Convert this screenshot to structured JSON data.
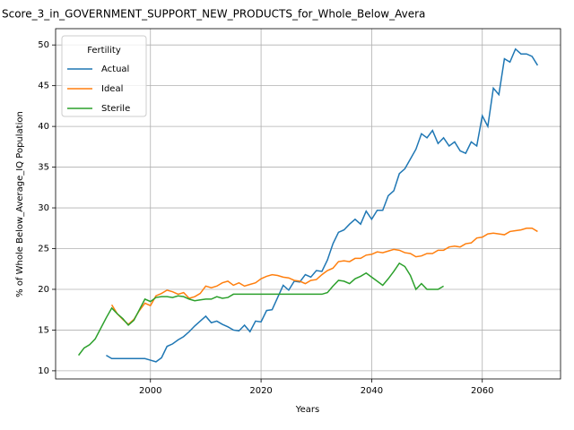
{
  "chart_data": {
    "type": "line",
    "title": "Score_3_in_GOVERNMENT_SUPPORT_NEW_PRODUCTS_for_Whole_Below_Avera",
    "xlabel": "Years",
    "ylabel": "% of Whole Below_Average_IQ Population",
    "legend_title": "Fertility",
    "legend": "upper left",
    "grid": true,
    "x": [
      1987,
      1988,
      1989,
      1990,
      1991,
      1992,
      1993,
      1994,
      1995,
      1996,
      1997,
      1998,
      1999,
      2000,
      2001,
      2002,
      2003,
      2004,
      2005,
      2006,
      2007,
      2008,
      2009,
      2010,
      2011,
      2012,
      2013,
      2014,
      2015,
      2016,
      2017,
      2018,
      2019,
      2020,
      2021,
      2022,
      2023,
      2024,
      2025,
      2026,
      2027,
      2028,
      2029,
      2030,
      2031,
      2032,
      2033,
      2034,
      2035,
      2036,
      2037,
      2038,
      2039,
      2040,
      2041,
      2042,
      2043,
      2044,
      2045,
      2046,
      2047,
      2048,
      2049,
      2050,
      2051,
      2052,
      2053,
      2054,
      2055,
      2056,
      2057,
      2058,
      2059,
      2060,
      2061,
      2062,
      2063,
      2064,
      2065,
      2066,
      2067,
      2068,
      2069,
      2070
    ],
    "series": [
      {
        "name": "Actual",
        "color": "#1f77b4",
        "values": [
          null,
          null,
          null,
          null,
          null,
          11.9,
          11.5,
          11.5,
          11.5,
          11.5,
          11.5,
          11.5,
          11.5,
          11.3,
          11.1,
          11.6,
          13.0,
          13.3,
          13.8,
          14.2,
          14.8,
          15.5,
          16.1,
          16.7,
          15.9,
          16.1,
          15.7,
          15.4,
          15.0,
          14.9,
          15.6,
          14.8,
          16.1,
          16.0,
          17.4,
          17.5,
          19.0,
          20.5,
          19.9,
          21.0,
          20.9,
          21.8,
          21.5,
          22.3,
          22.2,
          23.6,
          25.6,
          27.0,
          27.3,
          28.0,
          28.6,
          28.0,
          29.6,
          28.6,
          29.7,
          29.7,
          31.5,
          32.1,
          34.2,
          34.8,
          36.0,
          37.2,
          39.1,
          38.6,
          39.5,
          37.9,
          38.6,
          37.6,
          38.1,
          37.0,
          36.7,
          38.1,
          37.6,
          41.3,
          40.0,
          44.7,
          43.9,
          48.3,
          47.9,
          49.5,
          48.9,
          48.9,
          48.6,
          47.5
        ]
      },
      {
        "name": "Ideal",
        "color": "#ff7f0e",
        "values": [
          null,
          null,
          null,
          null,
          null,
          null,
          18.1,
          17.0,
          16.3,
          15.7,
          16.3,
          17.4,
          18.3,
          18.0,
          19.2,
          19.5,
          19.9,
          19.7,
          19.4,
          19.6,
          18.9,
          19.1,
          19.5,
          20.4,
          20.2,
          20.4,
          20.8,
          21.0,
          20.5,
          20.8,
          20.4,
          20.6,
          20.8,
          21.3,
          21.6,
          21.8,
          21.7,
          21.5,
          21.4,
          21.1,
          21.0,
          20.7,
          21.1,
          21.2,
          21.8,
          22.3,
          22.6,
          23.4,
          23.5,
          23.4,
          23.8,
          23.8,
          24.2,
          24.3,
          24.6,
          24.5,
          24.7,
          24.9,
          24.8,
          24.5,
          24.4,
          24.0,
          24.1,
          24.4,
          24.4,
          24.8,
          24.8,
          25.2,
          25.3,
          25.2,
          25.6,
          25.7,
          26.3,
          26.4,
          26.8,
          26.9,
          26.8,
          26.7,
          27.1,
          27.2,
          27.3,
          27.5,
          27.5,
          27.1
        ]
      },
      {
        "name": "Sterile",
        "color": "#2ca02c",
        "values": [
          11.9,
          12.8,
          13.2,
          13.9,
          15.2,
          16.5,
          17.7,
          17.0,
          16.4,
          15.6,
          16.2,
          17.5,
          18.8,
          18.5,
          19.0,
          19.1,
          19.1,
          19.0,
          19.2,
          19.1,
          18.8,
          18.6,
          18.7,
          18.8,
          18.8,
          19.1,
          18.9,
          19.0,
          19.4,
          19.4,
          19.4,
          19.4,
          19.4,
          19.4,
          19.4,
          19.4,
          19.4,
          19.4,
          19.4,
          19.4,
          19.4,
          19.4,
          19.4,
          19.4,
          19.4,
          19.6,
          20.4,
          21.1,
          21.0,
          20.7,
          21.3,
          21.6,
          22.0,
          21.5,
          21.0,
          20.5,
          21.3,
          22.2,
          23.2,
          22.8,
          21.7,
          20.0,
          20.7,
          20.0,
          20.0,
          20.0,
          20.4,
          null,
          null,
          null,
          null,
          null,
          null,
          null,
          null,
          null,
          null,
          null,
          null,
          null,
          null,
          null,
          null,
          null
        ]
      }
    ],
    "xlim": [
      1982.85,
      2074.15
    ],
    "xticks": [
      2000,
      2020,
      2040,
      2060
    ],
    "ylim": [
      9.0,
      52.0
    ],
    "yticks": [
      10,
      15,
      20,
      25,
      30,
      35,
      40,
      45,
      50
    ]
  }
}
